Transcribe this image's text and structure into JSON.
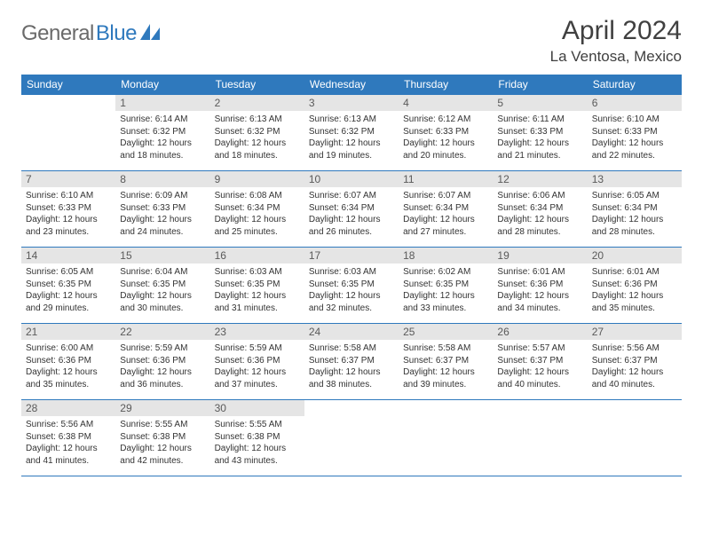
{
  "logo": {
    "word1": "General",
    "word2": "Blue"
  },
  "title": "April 2024",
  "location": "La Ventosa, Mexico",
  "colors": {
    "header_bg": "#2f79bd",
    "header_text": "#ffffff",
    "daynum_bg": "#e5e5e5",
    "rule": "#2f79bd",
    "logo_gray": "#6a6a6a",
    "logo_blue": "#2f79bd"
  },
  "typography": {
    "title_fontsize": 30,
    "location_fontsize": 17,
    "dayheader_fontsize": 12,
    "daynum_fontsize": 12,
    "body_fontsize": 10
  },
  "day_headers": [
    "Sunday",
    "Monday",
    "Tuesday",
    "Wednesday",
    "Thursday",
    "Friday",
    "Saturday"
  ],
  "weeks": [
    [
      {
        "n": "",
        "sunrise": "",
        "sunset": "",
        "daylight": ""
      },
      {
        "n": "1",
        "sunrise": "Sunrise: 6:14 AM",
        "sunset": "Sunset: 6:32 PM",
        "daylight": "Daylight: 12 hours and 18 minutes."
      },
      {
        "n": "2",
        "sunrise": "Sunrise: 6:13 AM",
        "sunset": "Sunset: 6:32 PM",
        "daylight": "Daylight: 12 hours and 18 minutes."
      },
      {
        "n": "3",
        "sunrise": "Sunrise: 6:13 AM",
        "sunset": "Sunset: 6:32 PM",
        "daylight": "Daylight: 12 hours and 19 minutes."
      },
      {
        "n": "4",
        "sunrise": "Sunrise: 6:12 AM",
        "sunset": "Sunset: 6:33 PM",
        "daylight": "Daylight: 12 hours and 20 minutes."
      },
      {
        "n": "5",
        "sunrise": "Sunrise: 6:11 AM",
        "sunset": "Sunset: 6:33 PM",
        "daylight": "Daylight: 12 hours and 21 minutes."
      },
      {
        "n": "6",
        "sunrise": "Sunrise: 6:10 AM",
        "sunset": "Sunset: 6:33 PM",
        "daylight": "Daylight: 12 hours and 22 minutes."
      }
    ],
    [
      {
        "n": "7",
        "sunrise": "Sunrise: 6:10 AM",
        "sunset": "Sunset: 6:33 PM",
        "daylight": "Daylight: 12 hours and 23 minutes."
      },
      {
        "n": "8",
        "sunrise": "Sunrise: 6:09 AM",
        "sunset": "Sunset: 6:33 PM",
        "daylight": "Daylight: 12 hours and 24 minutes."
      },
      {
        "n": "9",
        "sunrise": "Sunrise: 6:08 AM",
        "sunset": "Sunset: 6:34 PM",
        "daylight": "Daylight: 12 hours and 25 minutes."
      },
      {
        "n": "10",
        "sunrise": "Sunrise: 6:07 AM",
        "sunset": "Sunset: 6:34 PM",
        "daylight": "Daylight: 12 hours and 26 minutes."
      },
      {
        "n": "11",
        "sunrise": "Sunrise: 6:07 AM",
        "sunset": "Sunset: 6:34 PM",
        "daylight": "Daylight: 12 hours and 27 minutes."
      },
      {
        "n": "12",
        "sunrise": "Sunrise: 6:06 AM",
        "sunset": "Sunset: 6:34 PM",
        "daylight": "Daylight: 12 hours and 28 minutes."
      },
      {
        "n": "13",
        "sunrise": "Sunrise: 6:05 AM",
        "sunset": "Sunset: 6:34 PM",
        "daylight": "Daylight: 12 hours and 28 minutes."
      }
    ],
    [
      {
        "n": "14",
        "sunrise": "Sunrise: 6:05 AM",
        "sunset": "Sunset: 6:35 PM",
        "daylight": "Daylight: 12 hours and 29 minutes."
      },
      {
        "n": "15",
        "sunrise": "Sunrise: 6:04 AM",
        "sunset": "Sunset: 6:35 PM",
        "daylight": "Daylight: 12 hours and 30 minutes."
      },
      {
        "n": "16",
        "sunrise": "Sunrise: 6:03 AM",
        "sunset": "Sunset: 6:35 PM",
        "daylight": "Daylight: 12 hours and 31 minutes."
      },
      {
        "n": "17",
        "sunrise": "Sunrise: 6:03 AM",
        "sunset": "Sunset: 6:35 PM",
        "daylight": "Daylight: 12 hours and 32 minutes."
      },
      {
        "n": "18",
        "sunrise": "Sunrise: 6:02 AM",
        "sunset": "Sunset: 6:35 PM",
        "daylight": "Daylight: 12 hours and 33 minutes."
      },
      {
        "n": "19",
        "sunrise": "Sunrise: 6:01 AM",
        "sunset": "Sunset: 6:36 PM",
        "daylight": "Daylight: 12 hours and 34 minutes."
      },
      {
        "n": "20",
        "sunrise": "Sunrise: 6:01 AM",
        "sunset": "Sunset: 6:36 PM",
        "daylight": "Daylight: 12 hours and 35 minutes."
      }
    ],
    [
      {
        "n": "21",
        "sunrise": "Sunrise: 6:00 AM",
        "sunset": "Sunset: 6:36 PM",
        "daylight": "Daylight: 12 hours and 35 minutes."
      },
      {
        "n": "22",
        "sunrise": "Sunrise: 5:59 AM",
        "sunset": "Sunset: 6:36 PM",
        "daylight": "Daylight: 12 hours and 36 minutes."
      },
      {
        "n": "23",
        "sunrise": "Sunrise: 5:59 AM",
        "sunset": "Sunset: 6:36 PM",
        "daylight": "Daylight: 12 hours and 37 minutes."
      },
      {
        "n": "24",
        "sunrise": "Sunrise: 5:58 AM",
        "sunset": "Sunset: 6:37 PM",
        "daylight": "Daylight: 12 hours and 38 minutes."
      },
      {
        "n": "25",
        "sunrise": "Sunrise: 5:58 AM",
        "sunset": "Sunset: 6:37 PM",
        "daylight": "Daylight: 12 hours and 39 minutes."
      },
      {
        "n": "26",
        "sunrise": "Sunrise: 5:57 AM",
        "sunset": "Sunset: 6:37 PM",
        "daylight": "Daylight: 12 hours and 40 minutes."
      },
      {
        "n": "27",
        "sunrise": "Sunrise: 5:56 AM",
        "sunset": "Sunset: 6:37 PM",
        "daylight": "Daylight: 12 hours and 40 minutes."
      }
    ],
    [
      {
        "n": "28",
        "sunrise": "Sunrise: 5:56 AM",
        "sunset": "Sunset: 6:38 PM",
        "daylight": "Daylight: 12 hours and 41 minutes."
      },
      {
        "n": "29",
        "sunrise": "Sunrise: 5:55 AM",
        "sunset": "Sunset: 6:38 PM",
        "daylight": "Daylight: 12 hours and 42 minutes."
      },
      {
        "n": "30",
        "sunrise": "Sunrise: 5:55 AM",
        "sunset": "Sunset: 6:38 PM",
        "daylight": "Daylight: 12 hours and 43 minutes."
      },
      {
        "n": "",
        "sunrise": "",
        "sunset": "",
        "daylight": ""
      },
      {
        "n": "",
        "sunrise": "",
        "sunset": "",
        "daylight": ""
      },
      {
        "n": "",
        "sunrise": "",
        "sunset": "",
        "daylight": ""
      },
      {
        "n": "",
        "sunrise": "",
        "sunset": "",
        "daylight": ""
      }
    ]
  ]
}
